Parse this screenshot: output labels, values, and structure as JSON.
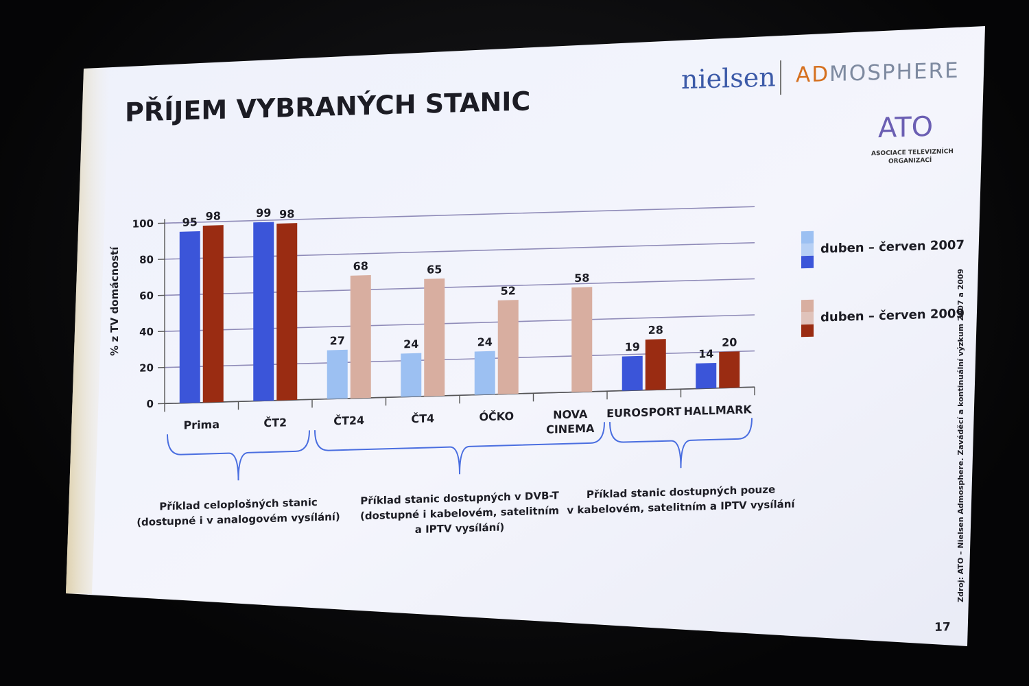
{
  "slide": {
    "title": "PŘÍJEM VYBRANÝCH STANIC",
    "page_number": "17",
    "source": "Zdroj: ATO – Nielsen Admosphere. Zaváděcí a kontinuální výzkum 2007 a 2009",
    "logos": {
      "nielsen": "nielsen",
      "admosphere_ad": "AD",
      "admosphere_rest": "MOSPHERE",
      "ato": "ATO",
      "ato_sub1": "ASOCIACE TELEVIZNÍCH",
      "ato_sub2": "ORGANIZACÍ"
    },
    "colors": {
      "series_2007_dark": "#3b55d9",
      "series_2007_light": "#9cc0f2",
      "series_2009_dark": "#9a2c12",
      "series_2009_light": "#d8aea0",
      "grid": "#8f8bb8",
      "bracket": "#4a6ee0"
    }
  },
  "chart_data": {
    "type": "bar",
    "ylabel": "% z TV domácností",
    "ylim": [
      0,
      100
    ],
    "yticks": [
      "0",
      "20",
      "40",
      "60",
      "80",
      "100"
    ],
    "categories": [
      [
        "Prima"
      ],
      [
        "ČT2"
      ],
      [
        "ČT24"
      ],
      [
        "ČT4"
      ],
      [
        "ÓČKO"
      ],
      [
        "NOVA",
        "CINEMA"
      ],
      [
        "EUROSPORT"
      ],
      [
        "HALLMARK"
      ]
    ],
    "series": [
      {
        "name": "duben – červen 2007",
        "values": [
          95,
          99,
          27,
          24,
          24,
          null,
          19,
          14
        ],
        "labels": [
          "95",
          "99",
          "27",
          "24",
          "24",
          "",
          "19",
          "14"
        ]
      },
      {
        "name": "duben – červen 2009",
        "values": [
          98,
          98,
          68,
          65,
          52,
          58,
          28,
          20
        ],
        "labels": [
          "98",
          "98",
          "68",
          "65",
          "52",
          "58",
          "28",
          "20"
        ]
      }
    ],
    "groups": [
      {
        "lines": [
          "Příklad celoplošných stanic",
          "(dostupné i v analogovém vysílání)"
        ]
      },
      {
        "lines": [
          "Příklad stanic dostupných v DVB-T",
          "(dostupné i kabelovém, satelitním",
          "a IPTV vysílání)"
        ]
      },
      {
        "lines": [
          "Příklad stanic dostupných pouze",
          "v kabelovém, satelitním a IPTV vysílání"
        ]
      }
    ],
    "grid": true,
    "legend_position": "right"
  }
}
